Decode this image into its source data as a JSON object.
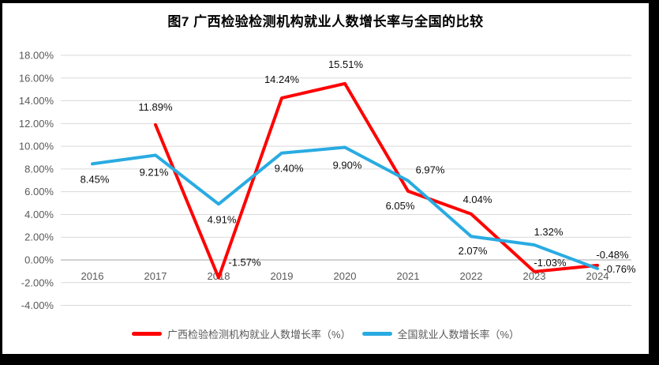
{
  "chart_data": {
    "type": "line",
    "title": "图7 广西检验检测机构就业人数增长率与全国的比较",
    "categories": [
      "2016",
      "2017",
      "2018",
      "2019",
      "2020",
      "2021",
      "2022",
      "2023",
      "2024"
    ],
    "series": [
      {
        "name": "广西检验检测机构就业人数增长率（%）",
        "color": "#FF0000",
        "values": [
          null,
          11.89,
          -1.57,
          14.24,
          15.51,
          6.05,
          4.04,
          -1.03,
          -0.48
        ],
        "label_offsets": [
          null,
          [
            0,
            -18
          ],
          [
            33,
            -15
          ],
          [
            0,
            -19
          ],
          [
            1,
            -20
          ],
          [
            -10,
            23
          ],
          [
            8,
            -14
          ],
          [
            20,
            -7
          ],
          [
            19,
            -9
          ]
        ]
      },
      {
        "name": "全国就业人数增长率（%）",
        "color": "#29ABE2",
        "values": [
          8.45,
          9.21,
          4.91,
          9.4,
          9.9,
          6.97,
          2.07,
          1.32,
          -0.76
        ],
        "label_offsets": [
          [
            3,
            24
          ],
          [
            -2,
            26
          ],
          [
            4,
            24
          ],
          [
            9,
            24
          ],
          [
            3,
            27
          ],
          [
            28,
            -9
          ],
          [
            2,
            23
          ],
          [
            18,
            -12
          ],
          [
            28,
            5
          ]
        ]
      }
    ],
    "y_axis": {
      "min": -4,
      "max": 18,
      "step": 2,
      "suffix": "%",
      "decimals": 2
    },
    "x_axis": {
      "labels_visible": true
    },
    "grid": true,
    "legend_position": "bottom",
    "colors": {
      "gridline": "#D9D9D9",
      "zero_axis": "#A6A6A6",
      "axis_text": "#595959",
      "data_label_text": "#0D0D0D",
      "outer_frame": "#000000"
    }
  }
}
